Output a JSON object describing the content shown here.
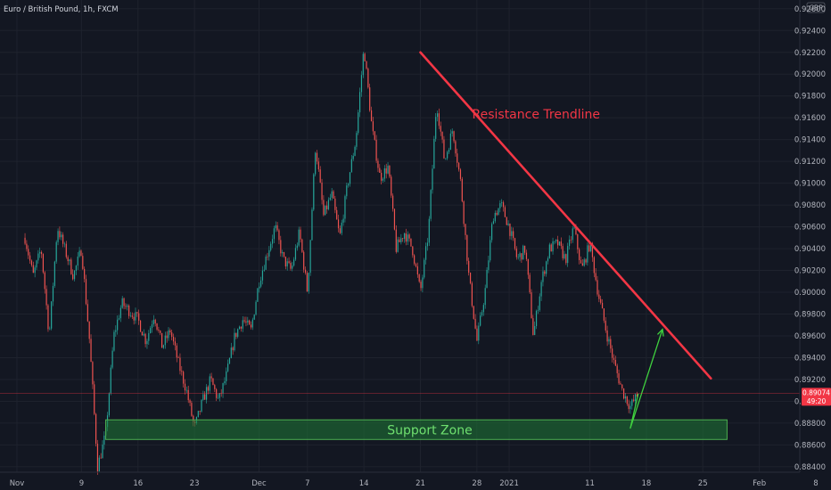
{
  "header": {
    "title": "Euro / British Pound, 1h, FXCM"
  },
  "colors": {
    "background": "#131722",
    "grid": "#1e222d",
    "up": "#26a69a",
    "down": "#ef5350",
    "trendline": "#f23645",
    "support_fill": "#1f7a36",
    "support_stroke": "#4caf50",
    "arrow": "#3fd13f",
    "price_line": "#f23645"
  },
  "chart_data": {
    "type": "candlestick",
    "currency_badge": "GBP",
    "y_ticks": [
      "0.92600",
      "0.92400",
      "0.92200",
      "0.92000",
      "0.91800",
      "0.91600",
      "0.91400",
      "0.91200",
      "0.91000",
      "0.90800",
      "0.90600",
      "0.90400",
      "0.90200",
      "0.90000",
      "0.89800",
      "0.89600",
      "0.89400",
      "0.89200",
      "0.89000",
      "0.88800",
      "0.88600",
      "0.88400"
    ],
    "ylim": [
      0.8835,
      0.9268
    ],
    "x_ticks": [
      "Nov",
      "9",
      "16",
      "23",
      "Dec",
      "7",
      "14",
      "21",
      "28",
      "2021",
      "11",
      "18",
      "25",
      "Feb",
      "8"
    ],
    "current_price": "0.89074",
    "countdown": "49:20",
    "annotations": {
      "resistance_label": "Resistance Trendline",
      "support_label": "Support Zone"
    },
    "resistance_line": {
      "from": {
        "date": "Dec 21",
        "price": 0.922
      },
      "to": {
        "date": "Jan 26",
        "price": 0.8921
      }
    },
    "support_zone": {
      "from": "Nov 12",
      "to": "Jan 28",
      "top": 0.8883,
      "bottom": 0.8865
    },
    "projection_arrow": {
      "low": {
        "date": "Jan 16",
        "price": 0.8875
      },
      "target": {
        "date": "Jan 20",
        "price": 0.8966
      }
    },
    "price_path": [
      [
        "Nov 2",
        0.905
      ],
      [
        "Nov 3",
        0.9015
      ],
      [
        "Nov 4",
        0.904
      ],
      [
        "Nov 5",
        0.896
      ],
      [
        "Nov 6",
        0.906
      ],
      [
        "Nov 8",
        0.9015
      ],
      [
        "Nov 9",
        0.904
      ],
      [
        "Nov 10",
        0.8955
      ],
      [
        "Nov 11",
        0.884
      ],
      [
        "Nov 12",
        0.887
      ],
      [
        "Nov 13",
        0.896
      ],
      [
        "Nov 14",
        0.899
      ],
      [
        "Nov 16",
        0.8975
      ],
      [
        "Nov 17",
        0.8955
      ],
      [
        "Nov 18",
        0.898
      ],
      [
        "Nov 19",
        0.895
      ],
      [
        "Nov 20",
        0.8965
      ],
      [
        "Nov 21",
        0.8935
      ],
      [
        "Nov 22",
        0.891
      ],
      [
        "Nov 23",
        0.8875
      ],
      [
        "Nov 24",
        0.89
      ],
      [
        "Nov 25",
        0.892
      ],
      [
        "Nov 26",
        0.89
      ],
      [
        "Nov 27",
        0.8925
      ],
      [
        "Nov 28",
        0.896
      ],
      [
        "Nov 29",
        0.8975
      ],
      [
        "Nov 30",
        0.8965
      ],
      [
        "Dec 1",
        0.901
      ],
      [
        "Dec 2",
        0.9035
      ],
      [
        "Dec 3",
        0.906
      ],
      [
        "Dec 4",
        0.903
      ],
      [
        "Dec 5",
        0.902
      ],
      [
        "Dec 6",
        0.9055
      ],
      [
        "Dec 7",
        0.9
      ],
      [
        "Dec 8",
        0.9135
      ],
      [
        "Dec 9",
        0.907
      ],
      [
        "Dec 10",
        0.909
      ],
      [
        "Dec 11",
        0.905
      ],
      [
        "Dec 12",
        0.91
      ],
      [
        "Dec 13",
        0.914
      ],
      [
        "Dec 14",
        0.9225
      ],
      [
        "Dec 15",
        0.915
      ],
      [
        "Dec 16",
        0.9105
      ],
      [
        "Dec 17",
        0.9115
      ],
      [
        "Dec 18",
        0.904
      ],
      [
        "Dec 19",
        0.9055
      ],
      [
        "Dec 20",
        0.904
      ],
      [
        "Dec 21",
        0.9
      ],
      [
        "Dec 22",
        0.9055
      ],
      [
        "Dec 23",
        0.9175
      ],
      [
        "Dec 24",
        0.912
      ],
      [
        "Dec 25",
        0.915
      ],
      [
        "Dec 26",
        0.91
      ],
      [
        "Dec 27",
        0.9015
      ],
      [
        "Dec 28",
        0.8955
      ],
      [
        "Dec 29",
        0.9
      ],
      [
        "Dec 30",
        0.907
      ],
      [
        "Dec 31",
        0.908
      ],
      [
        "Jan 1",
        0.906
      ],
      [
        "Jan 2",
        0.903
      ],
      [
        "Jan 3",
        0.904
      ],
      [
        "Jan 4",
        0.896
      ],
      [
        "Jan 5",
        0.901
      ],
      [
        "Jan 6",
        0.904
      ],
      [
        "Jan 7",
        0.9045
      ],
      [
        "Jan 8",
        0.903
      ],
      [
        "Jan 9",
        0.906
      ],
      [
        "Jan 10",
        0.902
      ],
      [
        "Jan 11",
        0.9045
      ],
      [
        "Jan 12",
        0.9
      ],
      [
        "Jan 13",
        0.8965
      ],
      [
        "Jan 14",
        0.8935
      ],
      [
        "Jan 15",
        0.891
      ],
      [
        "Jan 16",
        0.8895
      ],
      [
        "Jan 17",
        0.8907
      ]
    ]
  }
}
